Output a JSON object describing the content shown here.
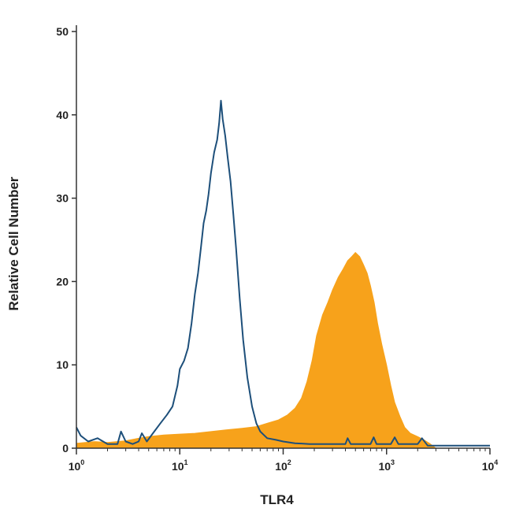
{
  "chart_data": {
    "type": "area",
    "xlabel": "TLR4",
    "ylabel": "Relative Cell Number",
    "x_scale": "log",
    "xlim": [
      1,
      10000
    ],
    "ylim": [
      0,
      50
    ],
    "x_ticks": [
      {
        "value": 1,
        "base": "10",
        "exp": "0"
      },
      {
        "value": 10,
        "base": "10",
        "exp": "1"
      },
      {
        "value": 100,
        "base": "10",
        "exp": "2"
      },
      {
        "value": 1000,
        "base": "10",
        "exp": "3"
      },
      {
        "value": 10000,
        "base": "10",
        "exp": "4"
      }
    ],
    "y_ticks": [
      0,
      10,
      20,
      30,
      40,
      50
    ],
    "grid": false,
    "legend": "none",
    "series": [
      {
        "style": "filled",
        "color": "#f7a21b",
        "points": [
          [
            1.0,
            0.6
          ],
          [
            1.5,
            0.8
          ],
          [
            2.0,
            0.7
          ],
          [
            3.0,
            0.9
          ],
          [
            4.0,
            1.2
          ],
          [
            5.0,
            1.4
          ],
          [
            7.0,
            1.6
          ],
          [
            10.0,
            1.7
          ],
          [
            14.0,
            1.8
          ],
          [
            20.0,
            2.0
          ],
          [
            28.0,
            2.2
          ],
          [
            40.0,
            2.4
          ],
          [
            55.0,
            2.6
          ],
          [
            70.0,
            3.0
          ],
          [
            90.0,
            3.4
          ],
          [
            110.0,
            4.0
          ],
          [
            130.0,
            4.8
          ],
          [
            150.0,
            6.0
          ],
          [
            170.0,
            8.0
          ],
          [
            190.0,
            10.5
          ],
          [
            210.0,
            13.5
          ],
          [
            240.0,
            16.0
          ],
          [
            270.0,
            17.5
          ],
          [
            300.0,
            19.0
          ],
          [
            340.0,
            20.5
          ],
          [
            380.0,
            21.5
          ],
          [
            420.0,
            22.5
          ],
          [
            460.0,
            23.0
          ],
          [
            500.0,
            23.5
          ],
          [
            550.0,
            23.0
          ],
          [
            600.0,
            22.0
          ],
          [
            650.0,
            21.0
          ],
          [
            700.0,
            19.5
          ],
          [
            760.0,
            17.5
          ],
          [
            820.0,
            15.0
          ],
          [
            900.0,
            12.5
          ],
          [
            1000.0,
            10.0
          ],
          [
            1100.0,
            7.5
          ],
          [
            1200.0,
            5.5
          ],
          [
            1350.0,
            3.8
          ],
          [
            1500.0,
            2.5
          ],
          [
            1700.0,
            1.8
          ],
          [
            2000.0,
            1.4
          ],
          [
            2300.0,
            1.0
          ],
          [
            2600.0,
            0.6
          ],
          [
            3000.0,
            0.0
          ]
        ]
      },
      {
        "style": "outline",
        "color": "#1d4f7a",
        "points": [
          [
            1.0,
            2.5
          ],
          [
            1.1,
            1.5
          ],
          [
            1.3,
            0.8
          ],
          [
            1.6,
            1.2
          ],
          [
            2.0,
            0.5
          ],
          [
            2.5,
            0.5
          ],
          [
            2.7,
            2.0
          ],
          [
            3.0,
            0.8
          ],
          [
            3.5,
            0.5
          ],
          [
            4.0,
            0.8
          ],
          [
            4.3,
            1.8
          ],
          [
            4.8,
            0.8
          ],
          [
            5.5,
            1.8
          ],
          [
            6.5,
            3.0
          ],
          [
            7.5,
            4.0
          ],
          [
            8.5,
            5.0
          ],
          [
            9.5,
            7.5
          ],
          [
            10.0,
            9.5
          ],
          [
            11.0,
            10.5
          ],
          [
            12.0,
            12.0
          ],
          [
            13.0,
            15.0
          ],
          [
            14.0,
            18.5
          ],
          [
            15.0,
            21.0
          ],
          [
            16.0,
            24.0
          ],
          [
            17.0,
            27.0
          ],
          [
            18.0,
            28.5
          ],
          [
            19.0,
            30.5
          ],
          [
            20.0,
            33.0
          ],
          [
            21.5,
            35.5
          ],
          [
            23.0,
            37.0
          ],
          [
            24.0,
            39.0
          ],
          [
            25.0,
            41.7
          ],
          [
            26.0,
            39.5
          ],
          [
            27.5,
            37.5
          ],
          [
            29.0,
            35.0
          ],
          [
            31.0,
            32.0
          ],
          [
            33.0,
            28.0
          ],
          [
            35.0,
            24.0
          ],
          [
            38.0,
            18.0
          ],
          [
            41.0,
            13.0
          ],
          [
            45.0,
            8.5
          ],
          [
            50.0,
            5.0
          ],
          [
            55.0,
            3.0
          ],
          [
            60.0,
            2.0
          ],
          [
            70.0,
            1.2
          ],
          [
            85.0,
            1.0
          ],
          [
            100.0,
            0.8
          ],
          [
            130.0,
            0.6
          ],
          [
            180.0,
            0.5
          ],
          [
            250.0,
            0.5
          ],
          [
            400.0,
            0.5
          ],
          [
            420.0,
            1.2
          ],
          [
            450.0,
            0.5
          ],
          [
            700.0,
            0.5
          ],
          [
            750.0,
            1.3
          ],
          [
            800.0,
            0.5
          ],
          [
            1100.0,
            0.5
          ],
          [
            1200.0,
            1.3
          ],
          [
            1300.0,
            0.5
          ],
          [
            2000.0,
            0.5
          ],
          [
            2200.0,
            1.2
          ],
          [
            2500.0,
            0.3
          ],
          [
            4000.0,
            0.3
          ],
          [
            6000.0,
            0.3
          ],
          [
            10000.0,
            0.3
          ]
        ]
      }
    ]
  }
}
